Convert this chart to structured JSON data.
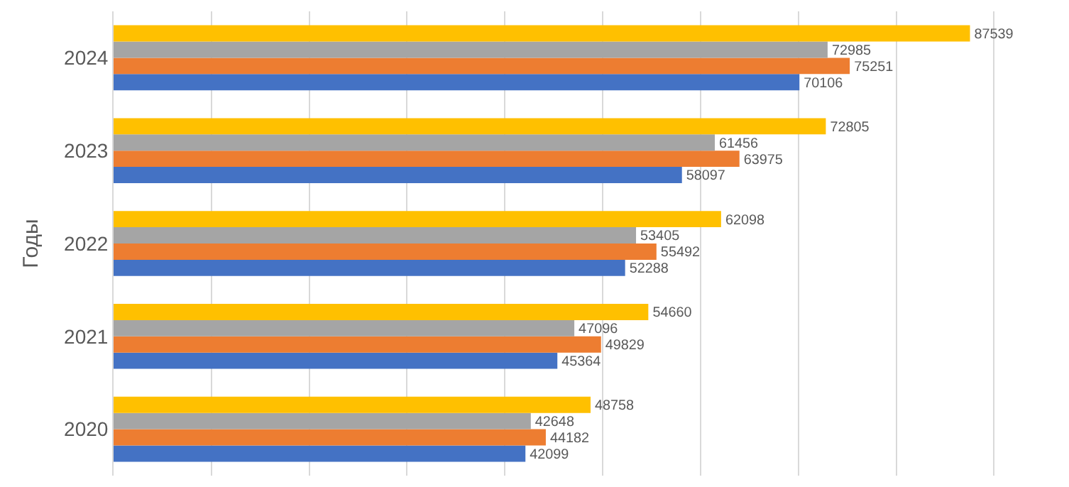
{
  "chart_data": {
    "type": "bar",
    "orientation": "horizontal",
    "ylabel": "Годы",
    "categories": [
      "2024",
      "2023",
      "2022",
      "2021",
      "2020"
    ],
    "series": [
      {
        "color": "#4472c4",
        "values": [
          70106,
          58097,
          52288,
          45364,
          42099
        ]
      },
      {
        "color": "#ed7d31",
        "values": [
          75251,
          63975,
          55492,
          49829,
          44182
        ]
      },
      {
        "color": "#a5a5a5",
        "values": [
          72985,
          61456,
          53405,
          47096,
          42648
        ]
      },
      {
        "color": "#ffc000",
        "values": [
          87539,
          72805,
          62098,
          54660,
          48758
        ]
      }
    ],
    "tick_labels": "y",
    "grid": "x",
    "data_labels": true
  }
}
